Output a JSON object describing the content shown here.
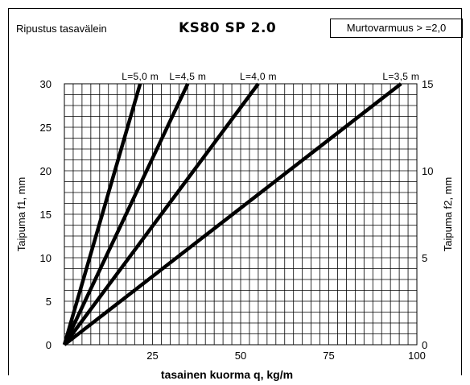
{
  "header": {
    "left_label": "Ripustus tasavälein",
    "title": "KS80 SP 2.0",
    "box_label": "Murtovarmuus > =2,0"
  },
  "chart_data": {
    "type": "line",
    "title": "KS80 SP 2.0",
    "xlabel": "tasainen kuorma q, kg/m",
    "ylabel": "Taipuma f1, mm",
    "y2label": "Taipuma f2, mm",
    "xlim": [
      0,
      100
    ],
    "ylim": [
      0,
      30
    ],
    "y2lim": [
      0,
      15
    ],
    "x_ticks": [
      "25",
      "50",
      "75",
      "100"
    ],
    "x_tick_values": [
      25,
      50,
      75,
      100
    ],
    "y_ticks": [
      "0",
      "5",
      "10",
      "15",
      "20",
      "25",
      "30"
    ],
    "y_tick_values": [
      0,
      5,
      10,
      15,
      20,
      25,
      30
    ],
    "y2_ticks": [
      "0",
      "5",
      "10",
      "15"
    ],
    "y2_tick_values": [
      0,
      5,
      10,
      15
    ],
    "grid": true,
    "grid_x_step": 2.5,
    "grid_y_step": 1.25,
    "line_color": "#000000",
    "series": [
      {
        "name": "L=5,0 m",
        "x": [
          0,
          21.5
        ],
        "y": [
          0,
          30
        ]
      },
      {
        "name": "L=4,5 m",
        "x": [
          0,
          35.0
        ],
        "y": [
          0,
          30
        ]
      },
      {
        "name": "L=4,0 m",
        "x": [
          0,
          55.0
        ],
        "y": [
          0,
          30
        ]
      },
      {
        "name": "L=3,5 m",
        "x": [
          0,
          95.5
        ],
        "y": [
          0,
          30
        ]
      }
    ]
  }
}
